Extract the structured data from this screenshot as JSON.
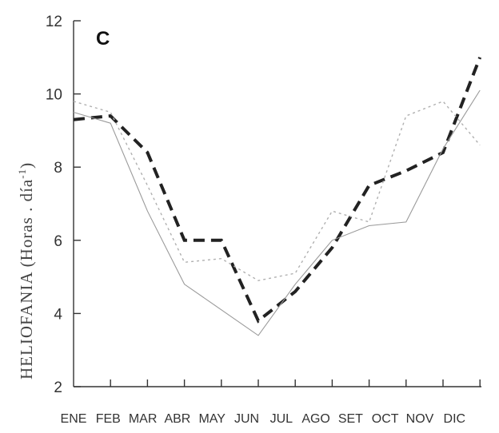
{
  "chart_data": {
    "type": "line",
    "panel_label": "C",
    "ylabel": {
      "main": "HELIOFANIA (Horas . día",
      "sup": "-1",
      "close": ")"
    },
    "ylim": [
      2,
      12
    ],
    "yticks": [
      2,
      4,
      6,
      8,
      10,
      12
    ],
    "categories": [
      "ENE",
      "FEB",
      "MAR",
      "ABR",
      "MAY",
      "JUN",
      "JUL",
      "AGO",
      "SET",
      "OCT",
      "NOV",
      "DIC"
    ],
    "grid": false,
    "series": [
      {
        "style": "thick-dashed",
        "color": "#222222",
        "values": [
          9.3,
          9.4,
          8.4,
          6.0,
          6.0,
          3.8,
          4.6,
          5.8,
          7.5,
          7.9,
          8.4,
          11.0
        ]
      },
      {
        "style": "thin-solid",
        "color": "#9a9a9a",
        "values": [
          9.5,
          9.2,
          6.8,
          4.8,
          4.1,
          3.4,
          4.8,
          6.0,
          6.4,
          6.5,
          8.5,
          10.1
        ]
      },
      {
        "style": "thin-dotted",
        "color": "#b0b0b0",
        "values": [
          9.8,
          9.5,
          7.5,
          5.4,
          5.5,
          4.9,
          5.1,
          6.8,
          6.5,
          9.4,
          9.8,
          8.6
        ]
      }
    ]
  }
}
